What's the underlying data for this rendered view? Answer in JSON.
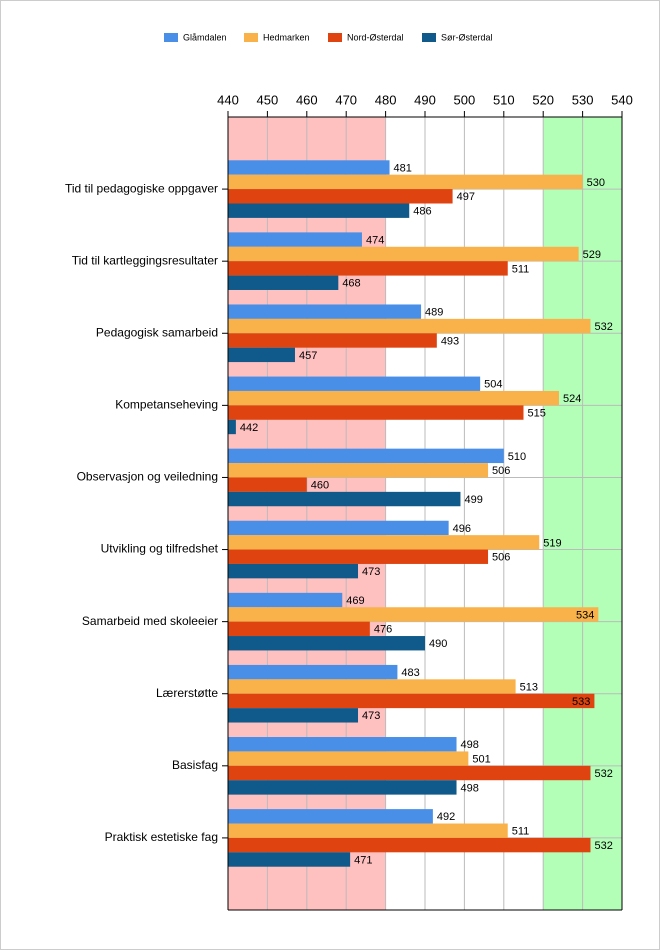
{
  "chart_data": {
    "type": "bar",
    "orientation": "horizontal",
    "categories": [
      "Tid til pedagogiske oppgaver",
      "Tid til kartleggingsresultater",
      "Pedagogisk samarbeid",
      "Kompetanseheving",
      "Observasjon og veiledning",
      "Utvikling og tilfredshet",
      "Samarbeid med skoleeier",
      "Lærerstøtte",
      "Basisfag",
      "Praktisk estetiske fag"
    ],
    "series": [
      {
        "name": "Glåmdalen",
        "color": "#4a8fe7",
        "values": [
          481,
          474,
          489,
          504,
          510,
          496,
          469,
          483,
          498,
          492
        ]
      },
      {
        "name": "Hedmarken",
        "color": "#f9b24a",
        "values": [
          530,
          529,
          532,
          524,
          506,
          519,
          534,
          513,
          501,
          511
        ]
      },
      {
        "name": "Nord-Østerdal",
        "color": "#df4410",
        "values": [
          497,
          511,
          493,
          515,
          460,
          506,
          476,
          533,
          532,
          532
        ]
      },
      {
        "name": "Sør-Østerdal",
        "color": "#0f5a8a",
        "values": [
          486,
          468,
          457,
          442,
          499,
          473,
          490,
          473,
          498,
          471
        ]
      }
    ],
    "xlim": [
      440,
      540
    ],
    "xticks": [
      440,
      450,
      460,
      470,
      480,
      490,
      500,
      510,
      520,
      530,
      540
    ],
    "bands": [
      {
        "range": [
          440,
          480
        ],
        "color": "#ffc0c0"
      },
      {
        "range": [
          520,
          540
        ],
        "color": "#b3ffb8"
      }
    ],
    "grid": true,
    "legend": "top"
  }
}
